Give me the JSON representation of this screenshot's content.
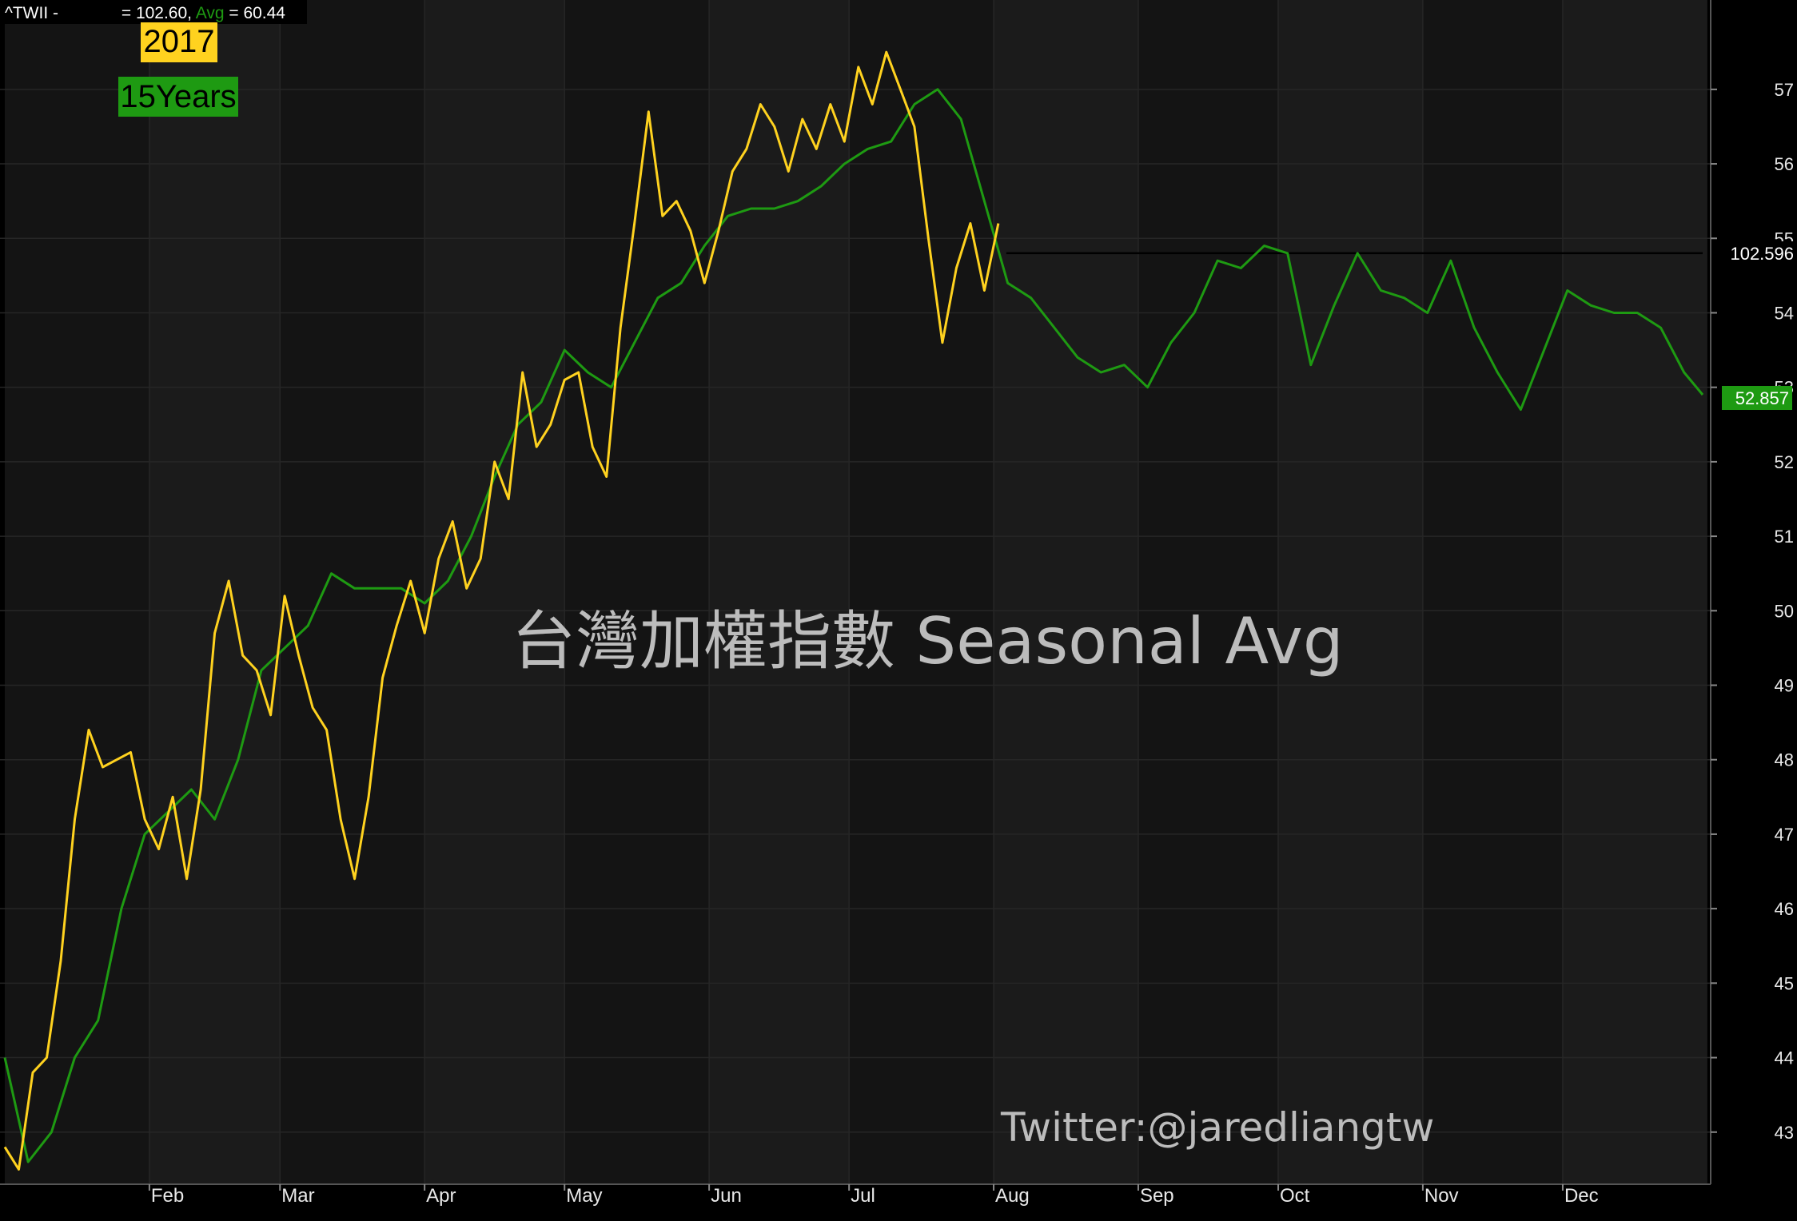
{
  "header": {
    "symbol": "^TWII -",
    "eq1": " = ",
    "value": "102.60",
    "sep": ", ",
    "avg_label": "Avg",
    "eq2": " = ",
    "avg_value": "60.44"
  },
  "legend": {
    "year_label": "2017",
    "avg_label": "15Years"
  },
  "watermark": {
    "title": "台灣加權指數 Seasonal Avg",
    "credit": "Twitter:@jaredliangtw"
  },
  "price_line": {
    "label": "102.596",
    "value": 54.8
  },
  "last_value": {
    "label": "52.857",
    "value": 52.857
  },
  "colors": {
    "background": "#000000",
    "band_dark": "#141414",
    "band_light": "#1b1b1b",
    "grid": "#262626",
    "series_2017": "#ffd21f",
    "series_avg": "#1e9a12",
    "axis_text": "#e8e8e8",
    "watermark": "#bcbcbc"
  },
  "chart_data": {
    "type": "line",
    "title": "台灣加權指數 Seasonal Avg",
    "xlabel": "",
    "ylabel": "",
    "ylim": [
      42.3,
      58.2
    ],
    "xlim": [
      0,
      364
    ],
    "x_unit": "day of year",
    "grid": true,
    "legend_position": "top-left",
    "y_ticks": [
      43,
      44,
      45,
      46,
      47,
      48,
      49,
      50,
      51,
      52,
      53,
      54,
      55,
      56,
      57
    ],
    "months": [
      {
        "label": "Feb",
        "day": 31
      },
      {
        "label": "Mar",
        "day": 59
      },
      {
        "label": "Apr",
        "day": 90
      },
      {
        "label": "May",
        "day": 120
      },
      {
        "label": "Jun",
        "day": 151
      },
      {
        "label": "Jul",
        "day": 181
      },
      {
        "label": "Aug",
        "day": 212
      },
      {
        "label": "Sep",
        "day": 243
      },
      {
        "label": "Oct",
        "day": 273
      },
      {
        "label": "Nov",
        "day": 304
      },
      {
        "label": "Dec",
        "day": 334
      }
    ],
    "series": [
      {
        "name": "2017",
        "color": "#ffd21f",
        "x": [
          0,
          3,
          6,
          9,
          12,
          15,
          18,
          21,
          24,
          27,
          30,
          33,
          36,
          39,
          42,
          45,
          48,
          51,
          54,
          57,
          60,
          63,
          66,
          69,
          72,
          75,
          78,
          81,
          84,
          87,
          90,
          93,
          96,
          99,
          102,
          105,
          108,
          111,
          114,
          117,
          120,
          123,
          126,
          129,
          132,
          135,
          138,
          141,
          144,
          147,
          150,
          153,
          156,
          159,
          162,
          165,
          168,
          171,
          174,
          177,
          180,
          183,
          186,
          189,
          192,
          195,
          198,
          201,
          204,
          207,
          210,
          213
        ],
        "y": [
          42.8,
          42.5,
          43.8,
          44.0,
          45.3,
          47.2,
          48.4,
          47.9,
          48.0,
          48.1,
          47.2,
          46.8,
          47.5,
          46.4,
          47.6,
          49.7,
          50.4,
          49.4,
          49.2,
          48.6,
          50.2,
          49.4,
          48.7,
          48.4,
          47.2,
          46.4,
          47.5,
          49.1,
          49.8,
          50.4,
          49.7,
          50.7,
          51.2,
          50.3,
          50.7,
          52.0,
          51.5,
          53.2,
          52.2,
          52.5,
          53.1,
          53.2,
          52.2,
          51.8,
          53.8,
          55.2,
          56.7,
          55.3,
          55.5,
          55.1,
          54.4,
          55.1,
          55.9,
          56.2,
          56.8,
          56.5,
          55.9,
          56.6,
          56.2,
          56.8,
          56.3,
          57.3,
          56.8,
          57.5,
          57.0,
          56.5,
          55.0,
          53.6,
          54.6,
          55.2,
          54.3,
          55.2
        ]
      },
      {
        "name": "15Years",
        "color": "#1e9a12",
        "x": [
          0,
          5,
          10,
          15,
          20,
          25,
          30,
          35,
          40,
          45,
          50,
          55,
          60,
          65,
          70,
          75,
          80,
          85,
          90,
          95,
          100,
          105,
          110,
          115,
          120,
          125,
          130,
          135,
          140,
          145,
          150,
          155,
          160,
          165,
          170,
          175,
          180,
          185,
          190,
          195,
          200,
          205,
          210,
          215,
          220,
          225,
          230,
          235,
          240,
          245,
          250,
          255,
          260,
          265,
          270,
          275,
          280,
          285,
          290,
          295,
          300,
          305,
          310,
          315,
          320,
          325,
          330,
          335,
          340,
          345,
          350,
          355,
          360,
          364
        ],
        "y": [
          44.0,
          42.6,
          43.0,
          44.0,
          44.5,
          46.0,
          47.0,
          47.3,
          47.6,
          47.2,
          48.0,
          49.2,
          49.5,
          49.8,
          50.5,
          50.3,
          50.3,
          50.3,
          50.1,
          50.4,
          51.0,
          51.8,
          52.5,
          52.8,
          53.5,
          53.2,
          53.0,
          53.6,
          54.2,
          54.4,
          54.9,
          55.3,
          55.4,
          55.4,
          55.5,
          55.7,
          56.0,
          56.2,
          56.3,
          56.8,
          57.0,
          56.6,
          55.5,
          54.4,
          54.2,
          53.8,
          53.4,
          53.2,
          53.3,
          53.0,
          53.6,
          54.0,
          54.7,
          54.6,
          54.9,
          54.8,
          53.3,
          54.1,
          54.8,
          54.3,
          54.2,
          54.0,
          54.7,
          53.8,
          53.2,
          52.7,
          53.5,
          54.3,
          54.1,
          54.0,
          54.0,
          53.8,
          53.2,
          52.9
        ]
      }
    ]
  }
}
